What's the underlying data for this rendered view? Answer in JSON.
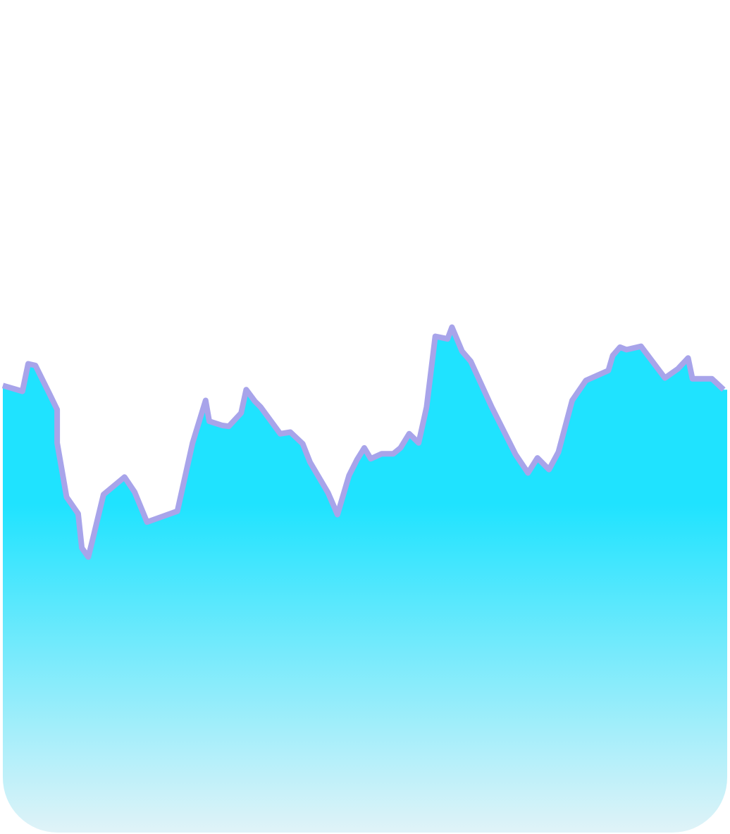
{
  "chart_data": {
    "type": "area",
    "title": "",
    "xlabel": "",
    "ylabel": "",
    "grid": false,
    "legend": "none",
    "xlim": [
      0,
      100
    ],
    "ylim": [
      0,
      100
    ],
    "colors": {
      "fill_top": "#1fe3ff",
      "fill_mid": "#1fe3ff",
      "fill_bottom": "#e0f3f8",
      "stroke": "#a8a4ea"
    },
    "series": [
      {
        "x": [
          0,
          2.7,
          3.5,
          4.5,
          6.5,
          7.5,
          7.5,
          8.8,
          10.4,
          10.9,
          11.8,
          12.4,
          13.9,
          16.8,
          18.2,
          19.9,
          24.1,
          26.2,
          28.0,
          28.5,
          30.3,
          31.2,
          32.9,
          33.6,
          34.8,
          35.6,
          38.3,
          39.7,
          41.4,
          42.4,
          44.9,
          46.2,
          47.8,
          48.9,
          49.9,
          50.8,
          52.3,
          53.9,
          54.9,
          56.1,
          57.4,
          58.5,
          59.7,
          61.4,
          62.0,
          63.4,
          64.6,
          67.5,
          70.8,
          72.5,
          73.8,
          75.4,
          76.7,
          78.6,
          80.5,
          83.6,
          84.2,
          85.2,
          86.1,
          88.1,
          91.4,
          93.2,
          94.6,
          95.2,
          97.9,
          99.5
        ],
        "values": [
          53.7,
          53.0,
          56.3,
          56.1,
          52.6,
          50.8,
          46.8,
          40.3,
          38.3,
          34.2,
          33.1,
          35.2,
          40.6,
          42.7,
          40.9,
          37.3,
          38.6,
          46.8,
          51.9,
          49.4,
          48.9,
          48.8,
          50.4,
          53.2,
          51.8,
          51.1,
          47.9,
          48.1,
          46.7,
          44.5,
          40.8,
          38.2,
          42.9,
          44.8,
          46.2,
          44.9,
          45.5,
          45.5,
          46.2,
          47.9,
          46.8,
          51.1,
          59.6,
          59.3,
          60.7,
          57.8,
          56.6,
          51.1,
          45.4,
          43.2,
          45.0,
          43.6,
          45.7,
          51.9,
          54.3,
          55.5,
          57.3,
          58.3,
          58.0,
          58.4,
          54.6,
          55.7,
          57.0,
          54.5,
          54.5,
          53.2
        ]
      }
    ]
  }
}
